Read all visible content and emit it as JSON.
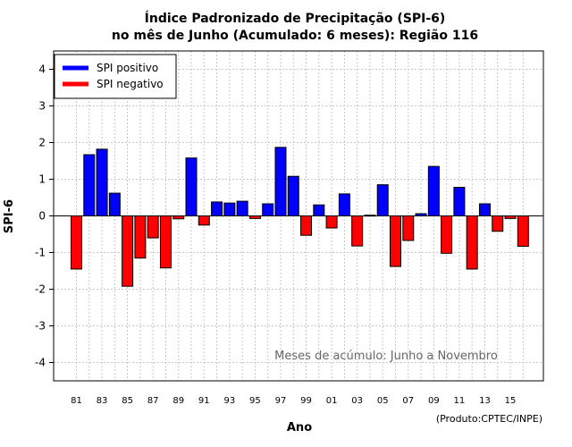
{
  "chart_data": {
    "type": "bar",
    "title_line1": "Índice Padronizado de Precipitação (SPI-6)",
    "title_line2": "no mês de Junho (Acumulado: 6 meses): Região 116",
    "xlabel": "Ano",
    "ylabel": "SPI-6",
    "ylim": [
      -4.5,
      4.5
    ],
    "yticks": [
      -4,
      -3,
      -2,
      -1,
      0,
      1,
      2,
      3,
      4
    ],
    "grid": true,
    "years": [
      1981,
      1982,
      1983,
      1984,
      1985,
      1986,
      1987,
      1988,
      1989,
      1990,
      1991,
      1992,
      1993,
      1994,
      1995,
      1996,
      1997,
      1998,
      1999,
      2000,
      2001,
      2002,
      2003,
      2004,
      2005,
      2006,
      2007,
      2008,
      2009,
      2010,
      2011,
      2012,
      2013,
      2014,
      2015,
      2016
    ],
    "values": [
      -1.45,
      1.67,
      1.82,
      0.62,
      -1.92,
      -1.15,
      -0.6,
      -1.42,
      -0.08,
      1.58,
      -0.25,
      0.38,
      0.35,
      0.4,
      -0.07,
      0.33,
      1.87,
      1.08,
      -0.53,
      0.3,
      -0.33,
      0.6,
      -0.82,
      0.02,
      0.85,
      -1.38,
      -0.67,
      0.06,
      1.35,
      -1.02,
      0.78,
      -1.45,
      0.33,
      -0.42,
      -0.07,
      -0.83
    ],
    "xtick_labels": [
      "81",
      "83",
      "85",
      "87",
      "89",
      "91",
      "93",
      "95",
      "97",
      "99",
      "01",
      "03",
      "05",
      "07",
      "09",
      "11",
      "13",
      "15"
    ],
    "legend": [
      {
        "label": "SPI positivo",
        "color": "#0000ff"
      },
      {
        "label": "SPI negativo",
        "color": "#ff0000"
      }
    ],
    "legend_position": "top-left",
    "annotation": "Meses de acúmulo: Junho a Novembro",
    "credit": "(Produto:CPTEC/INPE)"
  }
}
